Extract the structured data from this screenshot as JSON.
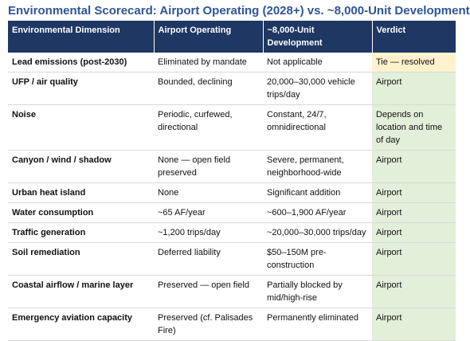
{
  "header": {
    "title": "Environmental Scorecard: Airport Operating (2028+) vs. ~8,000-Unit Development"
  },
  "table": {
    "columns": [
      "Environmental Dimension",
      "Airport Operating",
      "~8,000-Unit Development",
      "Verdict"
    ],
    "rows": [
      [
        "Lead emissions (post-2030)",
        "Eliminated by mandate",
        "Not applicable",
        "Tie — resolved"
      ],
      [
        "UFP / air quality",
        "Bounded, declining",
        "20,000–30,000 vehicle trips/day",
        "Airport"
      ],
      [
        "Noise",
        "Periodic, curfewed, directional",
        "Constant, 24/7, omnidirectional",
        "Depends on location and time of day"
      ],
      [
        "Canyon / wind / shadow",
        "None — open field preserved",
        "Severe, permanent, neighborhood-wide",
        "Airport"
      ],
      [
        "Urban heat island",
        "None",
        "Significant addition",
        "Airport"
      ],
      [
        "Water consumption",
        "~65 AF/year",
        "~600–1,900 AF/year",
        "Airport"
      ],
      [
        "Traffic generation",
        "~1,200 trips/day",
        "~20,000–30,000 trips/day",
        "Airport"
      ],
      [
        "Soil remediation",
        "Deferred liability",
        "$50–150M pre-construction",
        "Airport"
      ],
      [
        "Coastal airflow / marine layer",
        "Preserved — open field",
        "Partially blocked by mid/high-rise",
        "Airport"
      ],
      [
        "Emergency aviation capacity",
        "Preserved (cf. Palisades Fire)",
        "Permanently eliminated",
        "Airport"
      ]
    ]
  }
}
